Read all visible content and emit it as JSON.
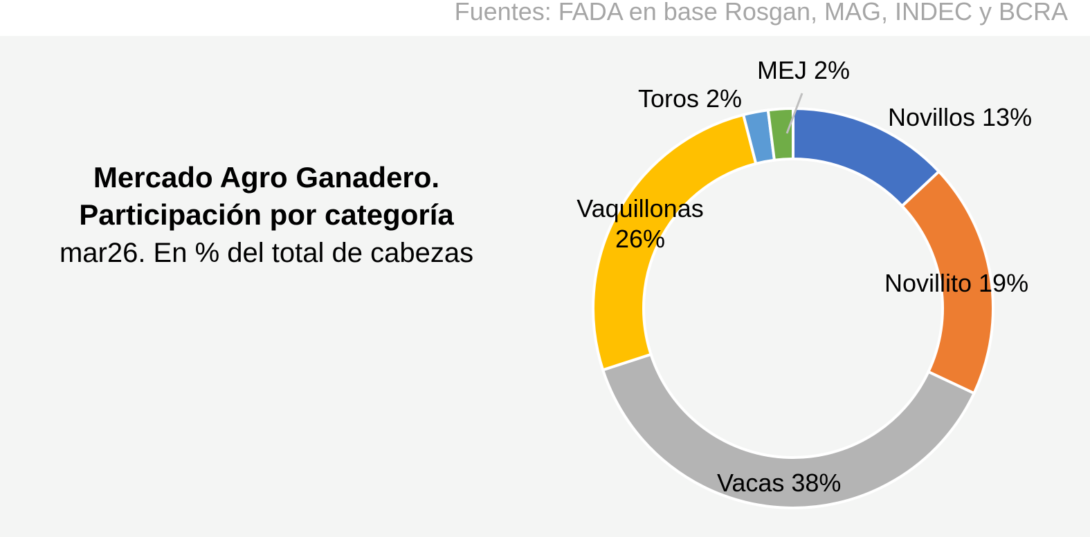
{
  "source": "Fuentes: FADA en base Rosgan, MAG, INDEC y BCRA",
  "chart_data": {
    "type": "pie",
    "variant": "donut",
    "title": "Mercado Agro Ganadero. Participación por categoría",
    "title_line1": "Mercado Agro Ganadero.",
    "title_line2": "Participación por categoría",
    "subtitle": "mar26. En % del total de cabezas",
    "start": "12 o'clock, clockwise",
    "slices": [
      {
        "name": "Novillos",
        "value": 13,
        "label": "Novillos 13%",
        "color": "#4472c4"
      },
      {
        "name": "Novillito",
        "value": 19,
        "label": "Novillito 19%",
        "color": "#ed7d31"
      },
      {
        "name": "Vacas",
        "value": 38,
        "label": "Vacas 38%",
        "color": "#b4b4b4"
      },
      {
        "name": "Vaquillonas",
        "value": 26,
        "label_line1": "Vaquillonas",
        "label_line2": "26%",
        "color": "#ffc000"
      },
      {
        "name": "Toros",
        "value": 2,
        "label": "Toros 2%",
        "color": "#5b9bd5"
      },
      {
        "name": "MEJ",
        "value": 2,
        "label": "MEJ 2%",
        "color": "#70ad47"
      }
    ]
  }
}
